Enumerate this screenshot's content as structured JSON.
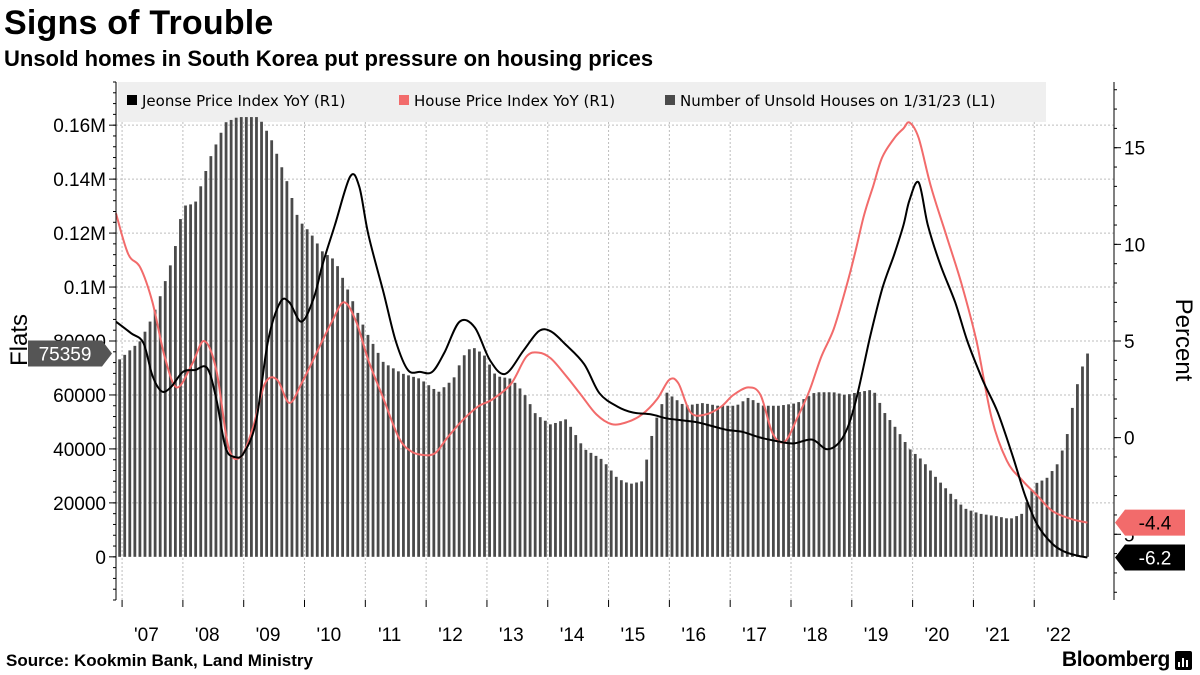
{
  "title": "Signs of Trouble",
  "subtitle": "Unsold homes in South Korea put pressure on housing prices",
  "source": "Source: Kookmin Bank, Land Ministry",
  "brand": "Bloomberg",
  "colors": {
    "bars": "#4a4a4a",
    "jeonse": "#000000",
    "house": "#f26b6b",
    "grid": "#bdbdbd",
    "legend_bg": "#efefef"
  },
  "chart_data": {
    "type": "bar",
    "title": "Signs of Trouble",
    "subtitle": "Unsold homes in South Korea put pressure on housing prices",
    "x_start": 2006.9,
    "x_end": 2022.917,
    "x_tick_labels": [
      {
        "label": "'07",
        "x": 2007.4
      },
      {
        "label": "'08",
        "x": 2008.4
      },
      {
        "label": "'09",
        "x": 2009.4
      },
      {
        "label": "'10",
        "x": 2010.4
      },
      {
        "label": "'11",
        "x": 2011.4
      },
      {
        "label": "'12",
        "x": 2012.4
      },
      {
        "label": "'13",
        "x": 2013.4
      },
      {
        "label": "'14",
        "x": 2014.4
      },
      {
        "label": "'15",
        "x": 2015.4
      },
      {
        "label": "'16",
        "x": 2016.4
      },
      {
        "label": "'17",
        "x": 2017.4
      },
      {
        "label": "'18",
        "x": 2018.4
      },
      {
        "label": "'19",
        "x": 2019.4
      },
      {
        "label": "'20",
        "x": 2020.4
      },
      {
        "label": "'21",
        "x": 2021.4
      },
      {
        "label": "'22",
        "x": 2022.4
      }
    ],
    "ylabel_left": "Flats",
    "ylabel_right": "Percent",
    "left_axis": {
      "min": -16000,
      "max": 176000,
      "ticks": [
        {
          "value": 0,
          "label": "0"
        },
        {
          "value": 20000,
          "label": "20000"
        },
        {
          "value": 40000,
          "label": "40000"
        },
        {
          "value": 60000,
          "label": "60000"
        },
        {
          "value": 80000,
          "label": "80000"
        },
        {
          "value": 100000,
          "label": "0.1M"
        },
        {
          "value": 120000,
          "label": "0.12M"
        },
        {
          "value": 140000,
          "label": "0.14M"
        },
        {
          "value": 160000,
          "label": "0.16M"
        }
      ]
    },
    "right_axis": {
      "min": -8.4,
      "max": 18.4,
      "ticks": [
        {
          "value": 0,
          "label": "0"
        },
        {
          "value": 5,
          "label": "5"
        },
        {
          "value": 10,
          "label": "10"
        },
        {
          "value": 15,
          "label": "15"
        }
      ],
      "partial_tick": {
        "value": -5,
        "label": "5"
      }
    },
    "legend": [
      {
        "label": "Jeonse Price Index YoY (R1)",
        "color": "#000000"
      },
      {
        "label": "House Price Index YoY (R1)",
        "color": "#f26b6b"
      },
      {
        "label": "Number of Unsold Houses on 1/31/23 (L1)",
        "color": "#4a4a4a"
      }
    ],
    "callouts": {
      "unsold_last": {
        "value": 75359,
        "label": "75359"
      },
      "house_last": {
        "value": -4.4,
        "label": "-4.4"
      },
      "jeonse_last": {
        "value": -6.2,
        "label": "-6.2"
      }
    },
    "series": [
      {
        "name": "Number of Unsold Houses on 1/31/23 (L1)",
        "axis": "left",
        "kind": "bar",
        "points": [
          [
            2006.95,
            73000
          ],
          [
            2007.3,
            80000
          ],
          [
            2007.5,
            89000
          ],
          [
            2007.65,
            98000
          ],
          [
            2007.85,
            112000
          ],
          [
            2008.0,
            130000
          ],
          [
            2008.2,
            131000
          ],
          [
            2008.45,
            148000
          ],
          [
            2008.7,
            161000
          ],
          [
            2008.9,
            163000
          ],
          [
            2009.05,
            163000
          ],
          [
            2009.25,
            163000
          ],
          [
            2009.45,
            155000
          ],
          [
            2009.7,
            140000
          ],
          [
            2009.9,
            125000
          ],
          [
            2010.1,
            120000
          ],
          [
            2010.3,
            113000
          ],
          [
            2010.5,
            110000
          ],
          [
            2010.75,
            97000
          ],
          [
            2011.0,
            84000
          ],
          [
            2011.3,
            72000
          ],
          [
            2011.6,
            68000
          ],
          [
            2011.9,
            66000
          ],
          [
            2012.2,
            61000
          ],
          [
            2012.45,
            66000
          ],
          [
            2012.6,
            74000
          ],
          [
            2012.75,
            78000
          ],
          [
            2012.95,
            75000
          ],
          [
            2013.15,
            67000
          ],
          [
            2013.4,
            66000
          ],
          [
            2013.6,
            61000
          ],
          [
            2013.8,
            53000
          ],
          [
            2014.05,
            49000
          ],
          [
            2014.3,
            51000
          ],
          [
            2014.6,
            40000
          ],
          [
            2014.9,
            36000
          ],
          [
            2015.15,
            29000
          ],
          [
            2015.35,
            27000
          ],
          [
            2015.55,
            28000
          ],
          [
            2015.75,
            49000
          ],
          [
            2015.95,
            61000
          ],
          [
            2016.25,
            56000
          ],
          [
            2016.55,
            57000
          ],
          [
            2016.8,
            56000
          ],
          [
            2017.1,
            56000
          ],
          [
            2017.3,
            59000
          ],
          [
            2017.55,
            56000
          ],
          [
            2017.8,
            56000
          ],
          [
            2018.1,
            57000
          ],
          [
            2018.4,
            61000
          ],
          [
            2018.7,
            61000
          ],
          [
            2018.9,
            60000
          ],
          [
            2019.1,
            61000
          ],
          [
            2019.35,
            62000
          ],
          [
            2019.55,
            53000
          ],
          [
            2019.75,
            47000
          ],
          [
            2019.95,
            40000
          ],
          [
            2020.15,
            36000
          ],
          [
            2020.4,
            29000
          ],
          [
            2020.6,
            24000
          ],
          [
            2020.85,
            18000
          ],
          [
            2021.1,
            16000
          ],
          [
            2021.4,
            15000
          ],
          [
            2021.6,
            14000
          ],
          [
            2021.8,
            16000
          ],
          [
            2022.0,
            27000
          ],
          [
            2022.2,
            29000
          ],
          [
            2022.4,
            35000
          ],
          [
            2022.55,
            46000
          ],
          [
            2022.65,
            58000
          ],
          [
            2022.75,
            68000
          ],
          [
            2022.875,
            75359
          ]
        ]
      },
      {
        "name": "Jeonse Price Index YoY (R1)",
        "axis": "right",
        "kind": "line",
        "points": [
          [
            2006.9,
            6.0
          ],
          [
            2007.15,
            5.4
          ],
          [
            2007.35,
            4.9
          ],
          [
            2007.5,
            3.2
          ],
          [
            2007.65,
            2.4
          ],
          [
            2007.8,
            2.6
          ],
          [
            2008.0,
            3.4
          ],
          [
            2008.2,
            3.5
          ],
          [
            2008.4,
            3.6
          ],
          [
            2008.55,
            2.0
          ],
          [
            2008.7,
            -0.5
          ],
          [
            2008.85,
            -1.0
          ],
          [
            2009.0,
            -0.8
          ],
          [
            2009.2,
            0.8
          ],
          [
            2009.4,
            5.0
          ],
          [
            2009.6,
            7.0
          ],
          [
            2009.75,
            7.0
          ],
          [
            2009.95,
            6.0
          ],
          [
            2010.15,
            7.2
          ],
          [
            2010.3,
            9.0
          ],
          [
            2010.5,
            11.0
          ],
          [
            2010.75,
            13.5
          ],
          [
            2010.9,
            13.0
          ],
          [
            2011.05,
            10.5
          ],
          [
            2011.3,
            7.5
          ],
          [
            2011.5,
            5.0
          ],
          [
            2011.7,
            3.5
          ],
          [
            2011.9,
            3.4
          ],
          [
            2012.1,
            3.4
          ],
          [
            2012.3,
            4.4
          ],
          [
            2012.55,
            6.0
          ],
          [
            2012.8,
            5.7
          ],
          [
            2013.05,
            4.0
          ],
          [
            2013.3,
            3.3
          ],
          [
            2013.6,
            4.5
          ],
          [
            2013.85,
            5.5
          ],
          [
            2014.05,
            5.5
          ],
          [
            2014.3,
            4.8
          ],
          [
            2014.6,
            3.8
          ],
          [
            2014.85,
            2.3
          ],
          [
            2015.15,
            1.6
          ],
          [
            2015.4,
            1.3
          ],
          [
            2015.7,
            1.2
          ],
          [
            2015.95,
            1.0
          ],
          [
            2016.2,
            0.9
          ],
          [
            2016.45,
            0.8
          ],
          [
            2016.7,
            0.6
          ],
          [
            2016.95,
            0.4
          ],
          [
            2017.2,
            0.3
          ],
          [
            2017.5,
            0.0
          ],
          [
            2017.8,
            -0.2
          ],
          [
            2018.05,
            -0.3
          ],
          [
            2018.35,
            -0.1
          ],
          [
            2018.6,
            -0.6
          ],
          [
            2018.85,
            0.0
          ],
          [
            2019.05,
            1.7
          ],
          [
            2019.3,
            5.2
          ],
          [
            2019.5,
            7.7
          ],
          [
            2019.7,
            9.5
          ],
          [
            2019.85,
            11.0
          ],
          [
            2019.95,
            12.3
          ],
          [
            2020.1,
            13.2
          ],
          [
            2020.25,
            11.0
          ],
          [
            2020.45,
            9.0
          ],
          [
            2020.7,
            7.0
          ],
          [
            2020.9,
            5.0
          ],
          [
            2021.15,
            3.0
          ],
          [
            2021.4,
            1.3
          ],
          [
            2021.65,
            -1.0
          ],
          [
            2021.85,
            -3.0
          ],
          [
            2022.05,
            -4.5
          ],
          [
            2022.3,
            -5.5
          ],
          [
            2022.5,
            -5.9
          ],
          [
            2022.7,
            -6.1
          ],
          [
            2022.875,
            -6.2
          ]
        ]
      },
      {
        "name": "House Price Index YoY (R1)",
        "axis": "right",
        "kind": "line",
        "points": [
          [
            2006.9,
            11.6
          ],
          [
            2007.1,
            9.5
          ],
          [
            2007.3,
            8.8
          ],
          [
            2007.5,
            7.0
          ],
          [
            2007.7,
            4.2
          ],
          [
            2007.9,
            2.6
          ],
          [
            2008.15,
            3.8
          ],
          [
            2008.35,
            5.0
          ],
          [
            2008.55,
            3.5
          ],
          [
            2008.75,
            -0.5
          ],
          [
            2008.95,
            -1.0
          ],
          [
            2009.15,
            0.5
          ],
          [
            2009.35,
            2.8
          ],
          [
            2009.55,
            3.0
          ],
          [
            2009.75,
            1.8
          ],
          [
            2009.95,
            2.8
          ],
          [
            2010.2,
            4.4
          ],
          [
            2010.45,
            6.0
          ],
          [
            2010.65,
            7.0
          ],
          [
            2010.85,
            6.0
          ],
          [
            2011.05,
            4.0
          ],
          [
            2011.3,
            2.0
          ],
          [
            2011.55,
            0.0
          ],
          [
            2011.75,
            -0.7
          ],
          [
            2011.95,
            -0.9
          ],
          [
            2012.15,
            -0.8
          ],
          [
            2012.35,
            0.0
          ],
          [
            2012.6,
            0.9
          ],
          [
            2012.85,
            1.6
          ],
          [
            2013.1,
            2.0
          ],
          [
            2013.4,
            2.8
          ],
          [
            2013.65,
            4.2
          ],
          [
            2013.85,
            4.4
          ],
          [
            2014.05,
            4.1
          ],
          [
            2014.3,
            3.2
          ],
          [
            2014.55,
            2.2
          ],
          [
            2014.8,
            1.2
          ],
          [
            2015.05,
            0.7
          ],
          [
            2015.3,
            0.8
          ],
          [
            2015.55,
            1.2
          ],
          [
            2015.8,
            2.0
          ],
          [
            2016.0,
            3.0
          ],
          [
            2016.15,
            2.8
          ],
          [
            2016.35,
            1.3
          ],
          [
            2016.6,
            1.2
          ],
          [
            2016.85,
            1.6
          ],
          [
            2017.05,
            2.2
          ],
          [
            2017.3,
            2.6
          ],
          [
            2017.5,
            2.2
          ],
          [
            2017.7,
            0.2
          ],
          [
            2017.9,
            -0.2
          ],
          [
            2018.1,
            1.0
          ],
          [
            2018.3,
            2.4
          ],
          [
            2018.5,
            4.2
          ],
          [
            2018.7,
            5.6
          ],
          [
            2018.9,
            7.7
          ],
          [
            2019.05,
            9.5
          ],
          [
            2019.2,
            11.5
          ],
          [
            2019.35,
            13.0
          ],
          [
            2019.5,
            14.5
          ],
          [
            2019.7,
            15.5
          ],
          [
            2019.85,
            16.0
          ],
          [
            2019.95,
            16.3
          ],
          [
            2020.1,
            15.5
          ],
          [
            2020.3,
            13.0
          ],
          [
            2020.55,
            10.5
          ],
          [
            2020.8,
            8.0
          ],
          [
            2021.05,
            5.0
          ],
          [
            2021.3,
            1.0
          ],
          [
            2021.55,
            -1.2
          ],
          [
            2021.8,
            -2.2
          ],
          [
            2022.05,
            -3.0
          ],
          [
            2022.3,
            -3.8
          ],
          [
            2022.6,
            -4.2
          ],
          [
            2022.875,
            -4.4
          ]
        ]
      }
    ]
  }
}
